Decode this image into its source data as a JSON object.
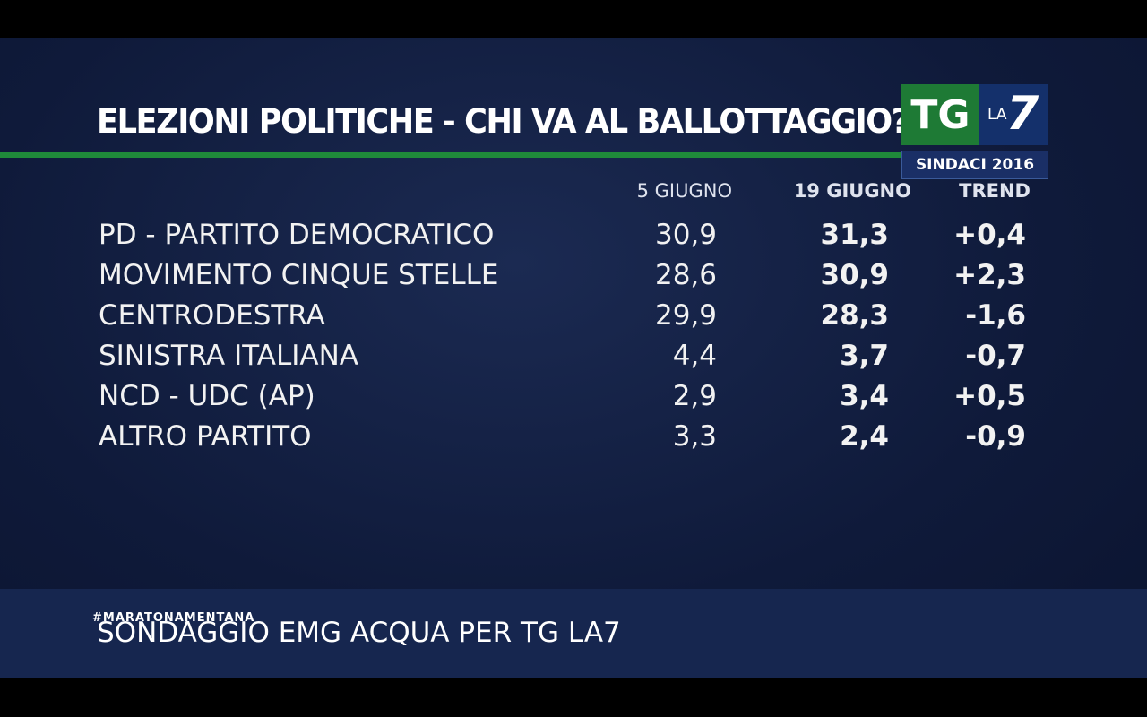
{
  "header": {
    "title": "ELEZIONI POLITICHE - CHI VA AL BALLOTTAGGIO?",
    "logo": {
      "tg": "TG",
      "la": "LA",
      "seven": "7",
      "subtitle": "SINDACI 2016"
    }
  },
  "table": {
    "columns": [
      "5 GIUGNO",
      "19 GIUGNO",
      "TREND"
    ],
    "rows": [
      [
        "PD - PARTITO DEMOCRATICO",
        "30,9",
        "31,3",
        "+0,4"
      ],
      [
        "MOVIMENTO CINQUE STELLE",
        "28,6",
        "30,9",
        "+2,3"
      ],
      [
        "CENTRODESTRA",
        "29,9",
        "28,3",
        "-1,6"
      ],
      [
        "SINISTRA ITALIANA",
        "4,4",
        "3,7",
        "-0,7"
      ],
      [
        "NCD - UDC (AP)",
        "2,9",
        "3,4",
        "+0,5"
      ],
      [
        "ALTRO PARTITO",
        "3,3",
        "2,4",
        "-0,9"
      ]
    ]
  },
  "footer": {
    "hashtag": "#MARATONAMENTANA",
    "source": "SONDAGGIO EMG ACQUA PER TG LA7"
  }
}
